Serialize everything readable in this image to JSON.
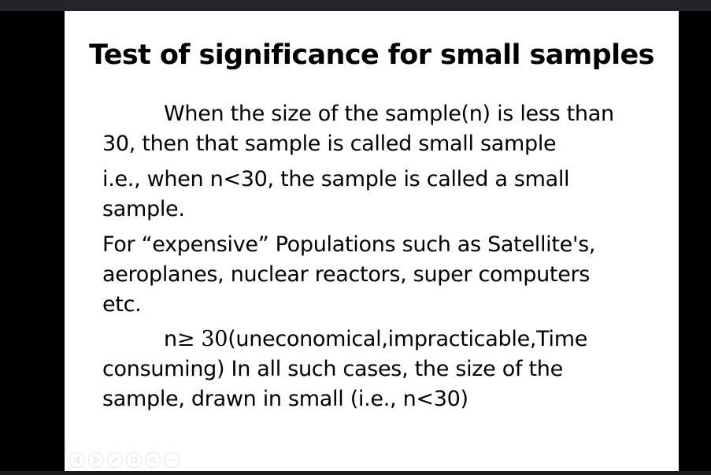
{
  "slide": {
    "title": "Test of significance for small samples",
    "paragraphs": [
      {
        "lines": [
          "When the size of the sample(n) is less than",
          "30, then that sample is called small sample"
        ]
      },
      {
        "lines": [
          "i.e., when n<30, the sample is called a small",
          "sample."
        ]
      },
      {
        "lines": [
          "For “expensive” Populations such as Satellite's,",
          "aeroplanes, nuclear reactors, super computers",
          "etc."
        ]
      },
      {
        "first_prefix": "n",
        "first_symbol": "≥ 30",
        "first_rest": "(uneconomical,impracticable,Time",
        "lines": [
          "consuming) In all such cases, the size of the",
          "sample, drawn in small (i.e., n<30)"
        ]
      }
    ]
  },
  "controls": {
    "icons": [
      "previous-icon",
      "next-icon",
      "pen-icon",
      "slides-icon",
      "zoom-icon",
      "more-icon"
    ]
  }
}
